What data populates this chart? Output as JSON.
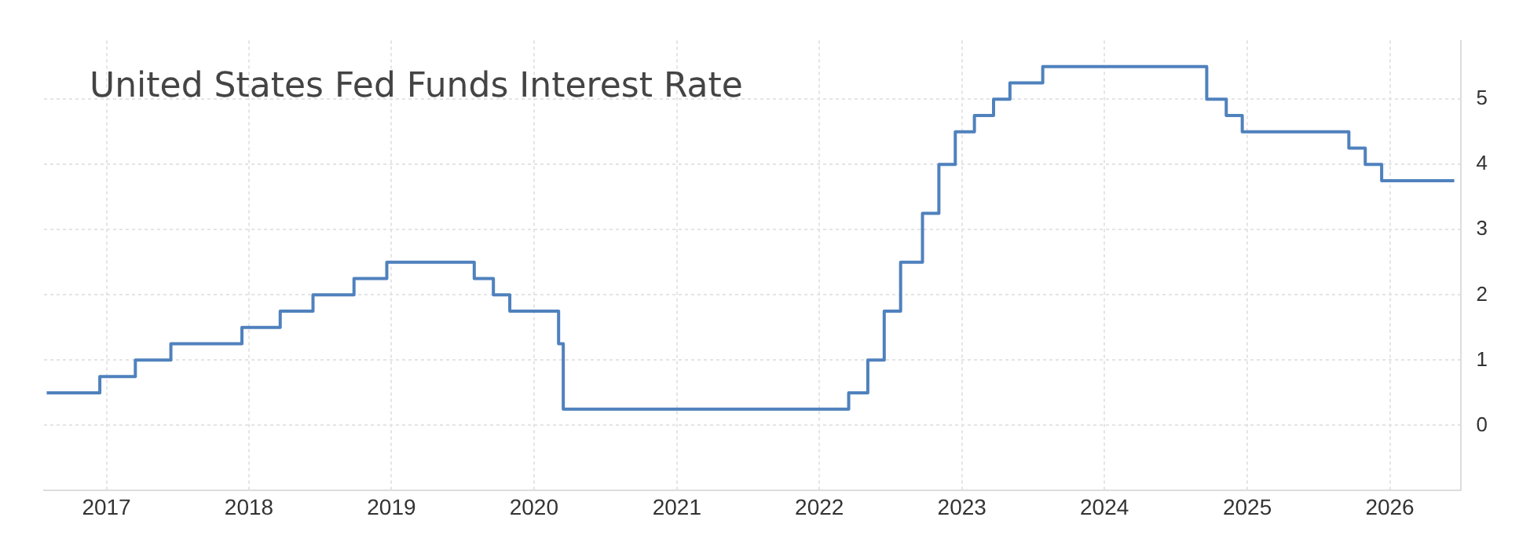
{
  "chart_data": {
    "type": "step",
    "title": "United States Fed Funds Interest Rate",
    "x": [
      "2016-08-01",
      "2016-12-15",
      "2017-03-16",
      "2017-06-15",
      "2017-12-14",
      "2018-03-22",
      "2018-06-14",
      "2018-09-27",
      "2018-12-20",
      "2019-08-01",
      "2019-09-19",
      "2019-10-31",
      "2020-03-04",
      "2020-03-16",
      "2022-03-17",
      "2022-05-05",
      "2022-06-16",
      "2022-07-28",
      "2022-09-22",
      "2022-11-03",
      "2022-12-15",
      "2023-02-02",
      "2023-03-23",
      "2023-05-04",
      "2023-07-27",
      "2024-09-19",
      "2024-11-08",
      "2024-12-19",
      "2025-09-18",
      "2025-10-30",
      "2025-12-11",
      "2026-06-15"
    ],
    "values": [
      0.5,
      0.75,
      1.0,
      1.25,
      1.5,
      1.75,
      2.0,
      2.25,
      2.5,
      2.25,
      2.0,
      1.75,
      1.25,
      0.25,
      0.5,
      1.0,
      1.75,
      2.5,
      3.25,
      4.0,
      4.5,
      4.75,
      5.0,
      5.25,
      5.5,
      5.0,
      4.75,
      4.5,
      4.25,
      4.0,
      3.75,
      3.75
    ],
    "color": "#4f81bd",
    "xlim": [
      "2016-07-25",
      "2026-07-01"
    ],
    "xticks": [
      "2017",
      "2018",
      "2019",
      "2020",
      "2021",
      "2022",
      "2023",
      "2024",
      "2025",
      "2026"
    ],
    "ylim": [
      -1,
      5.9
    ],
    "yticks": [
      0,
      1,
      2,
      3,
      4,
      5
    ],
    "grid": true
  }
}
